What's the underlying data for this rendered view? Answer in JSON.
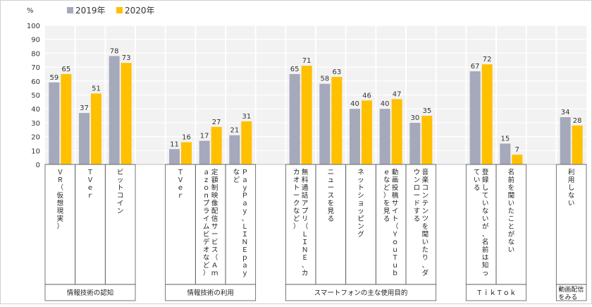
{
  "chart_data": {
    "type": "bar",
    "y_unit": "%",
    "ylim": [
      0,
      100
    ],
    "yticks": [
      0,
      10,
      20,
      30,
      40,
      50,
      60,
      70,
      80,
      90,
      100
    ],
    "grid": true,
    "legend_position": "top-left",
    "series": [
      {
        "name": "2019年",
        "color": "#a5a9bb"
      },
      {
        "name": "2020年",
        "color": "#ffc000"
      }
    ],
    "items": [
      {
        "label": "ＶＲ（仮想現実）",
        "values": [
          59,
          65
        ]
      },
      {
        "label": "ＴＶｅｒ",
        "values": [
          37,
          51
        ]
      },
      {
        "label": "ビットコイン",
        "values": [
          78,
          73
        ]
      },
      {
        "label": "",
        "values": [
          null,
          null
        ]
      },
      {
        "label": "ＴＶｅｒ",
        "values": [
          11,
          16
        ]
      },
      {
        "label": "定額制映像配信サービス（Ａｍａｚｏｎプライムビデオなど）",
        "values": [
          17,
          27
        ]
      },
      {
        "label": "ＰａｙＰａｙ、ＬＩＮＥ ｐａｙなど",
        "values": [
          21,
          31
        ]
      },
      {
        "label": "",
        "values": [
          null,
          null
        ]
      },
      {
        "label": "無料通話アプリ（ＬＩＮＥ、カカオトークなど）",
        "values": [
          65,
          71
        ]
      },
      {
        "label": "ニュースを見る",
        "values": [
          58,
          63
        ]
      },
      {
        "label": "ネットショッピング",
        "values": [
          40,
          46
        ]
      },
      {
        "label": "動画投稿サイト（ＹｏｕＴｕｂｅなど）を見る",
        "values": [
          40,
          47
        ]
      },
      {
        "label": "音楽コンテンツを聞いたり、ダウンロードする",
        "values": [
          30,
          35
        ]
      },
      {
        "label": "",
        "values": [
          null,
          null
        ]
      },
      {
        "label": "登録していないが、名前は知っている",
        "values": [
          67,
          72
        ]
      },
      {
        "label": "名前を聞いたことがない",
        "values": [
          15,
          7
        ]
      },
      {
        "label": "",
        "values": [
          null,
          null
        ]
      },
      {
        "label": "利用しない",
        "values": [
          34,
          28
        ]
      }
    ],
    "groups": [
      {
        "label": "情報技術の認知",
        "from": 0,
        "to": 2
      },
      {
        "label": "情報技術の利用",
        "from": 4,
        "to": 6
      },
      {
        "label": "スマートフォンの主な使用目的",
        "from": 8,
        "to": 12
      },
      {
        "label": "ＴｉｋＴｏｋ",
        "from": 14,
        "to": 15
      },
      {
        "label": "動画配信をみる",
        "from": 17,
        "to": 17
      }
    ]
  }
}
